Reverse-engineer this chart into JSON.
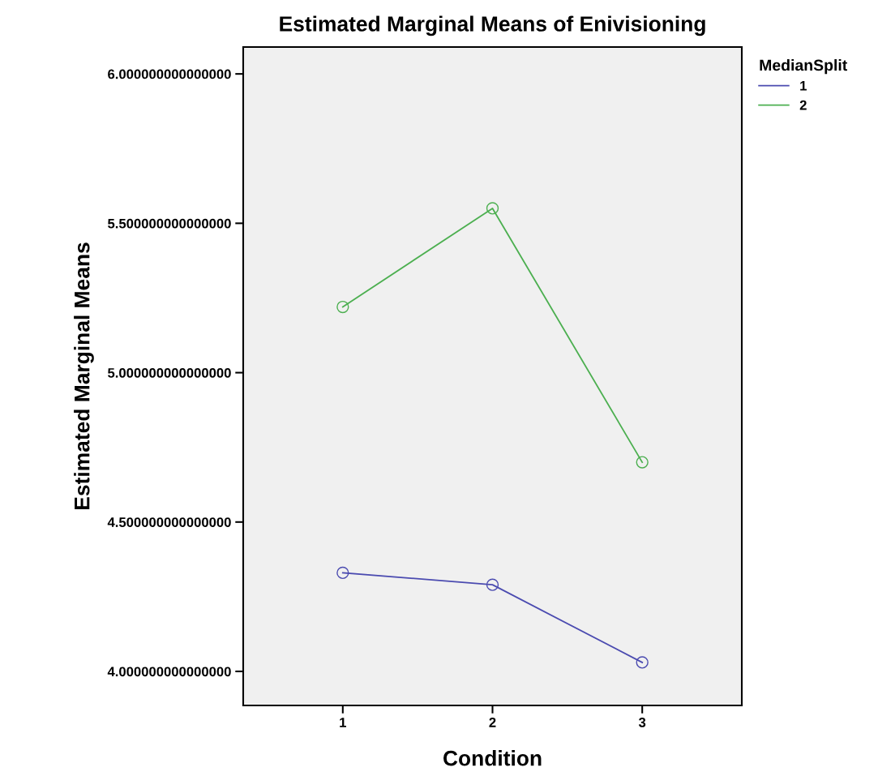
{
  "chart_data": {
    "type": "line",
    "title": "Estimated Marginal Means of Enivisioning",
    "xlabel": "Condition",
    "ylabel": "Estimated Marginal Means",
    "legend_title": "MedianSplit",
    "categories": [
      "1",
      "2",
      "3"
    ],
    "series": [
      {
        "name": "1",
        "color": "#4b4bb0",
        "values": [
          4.33,
          4.29,
          4.03
        ]
      },
      {
        "name": "2",
        "color": "#4caf50",
        "values": [
          5.22,
          5.55,
          4.7
        ]
      }
    ],
    "ylim": [
      3.886,
      6.09
    ],
    "yticks": [
      {
        "value": 4.0,
        "label": "4.000000000000000"
      },
      {
        "value": 4.5,
        "label": "4.500000000000000"
      },
      {
        "value": 5.0,
        "label": "5.000000000000000"
      },
      {
        "value": 5.5,
        "label": "5.500000000000000"
      },
      {
        "value": 6.0,
        "label": "6.000000000000000"
      }
    ],
    "marker": "circle",
    "line_style": "solid",
    "grid": false,
    "legend": "top right"
  }
}
